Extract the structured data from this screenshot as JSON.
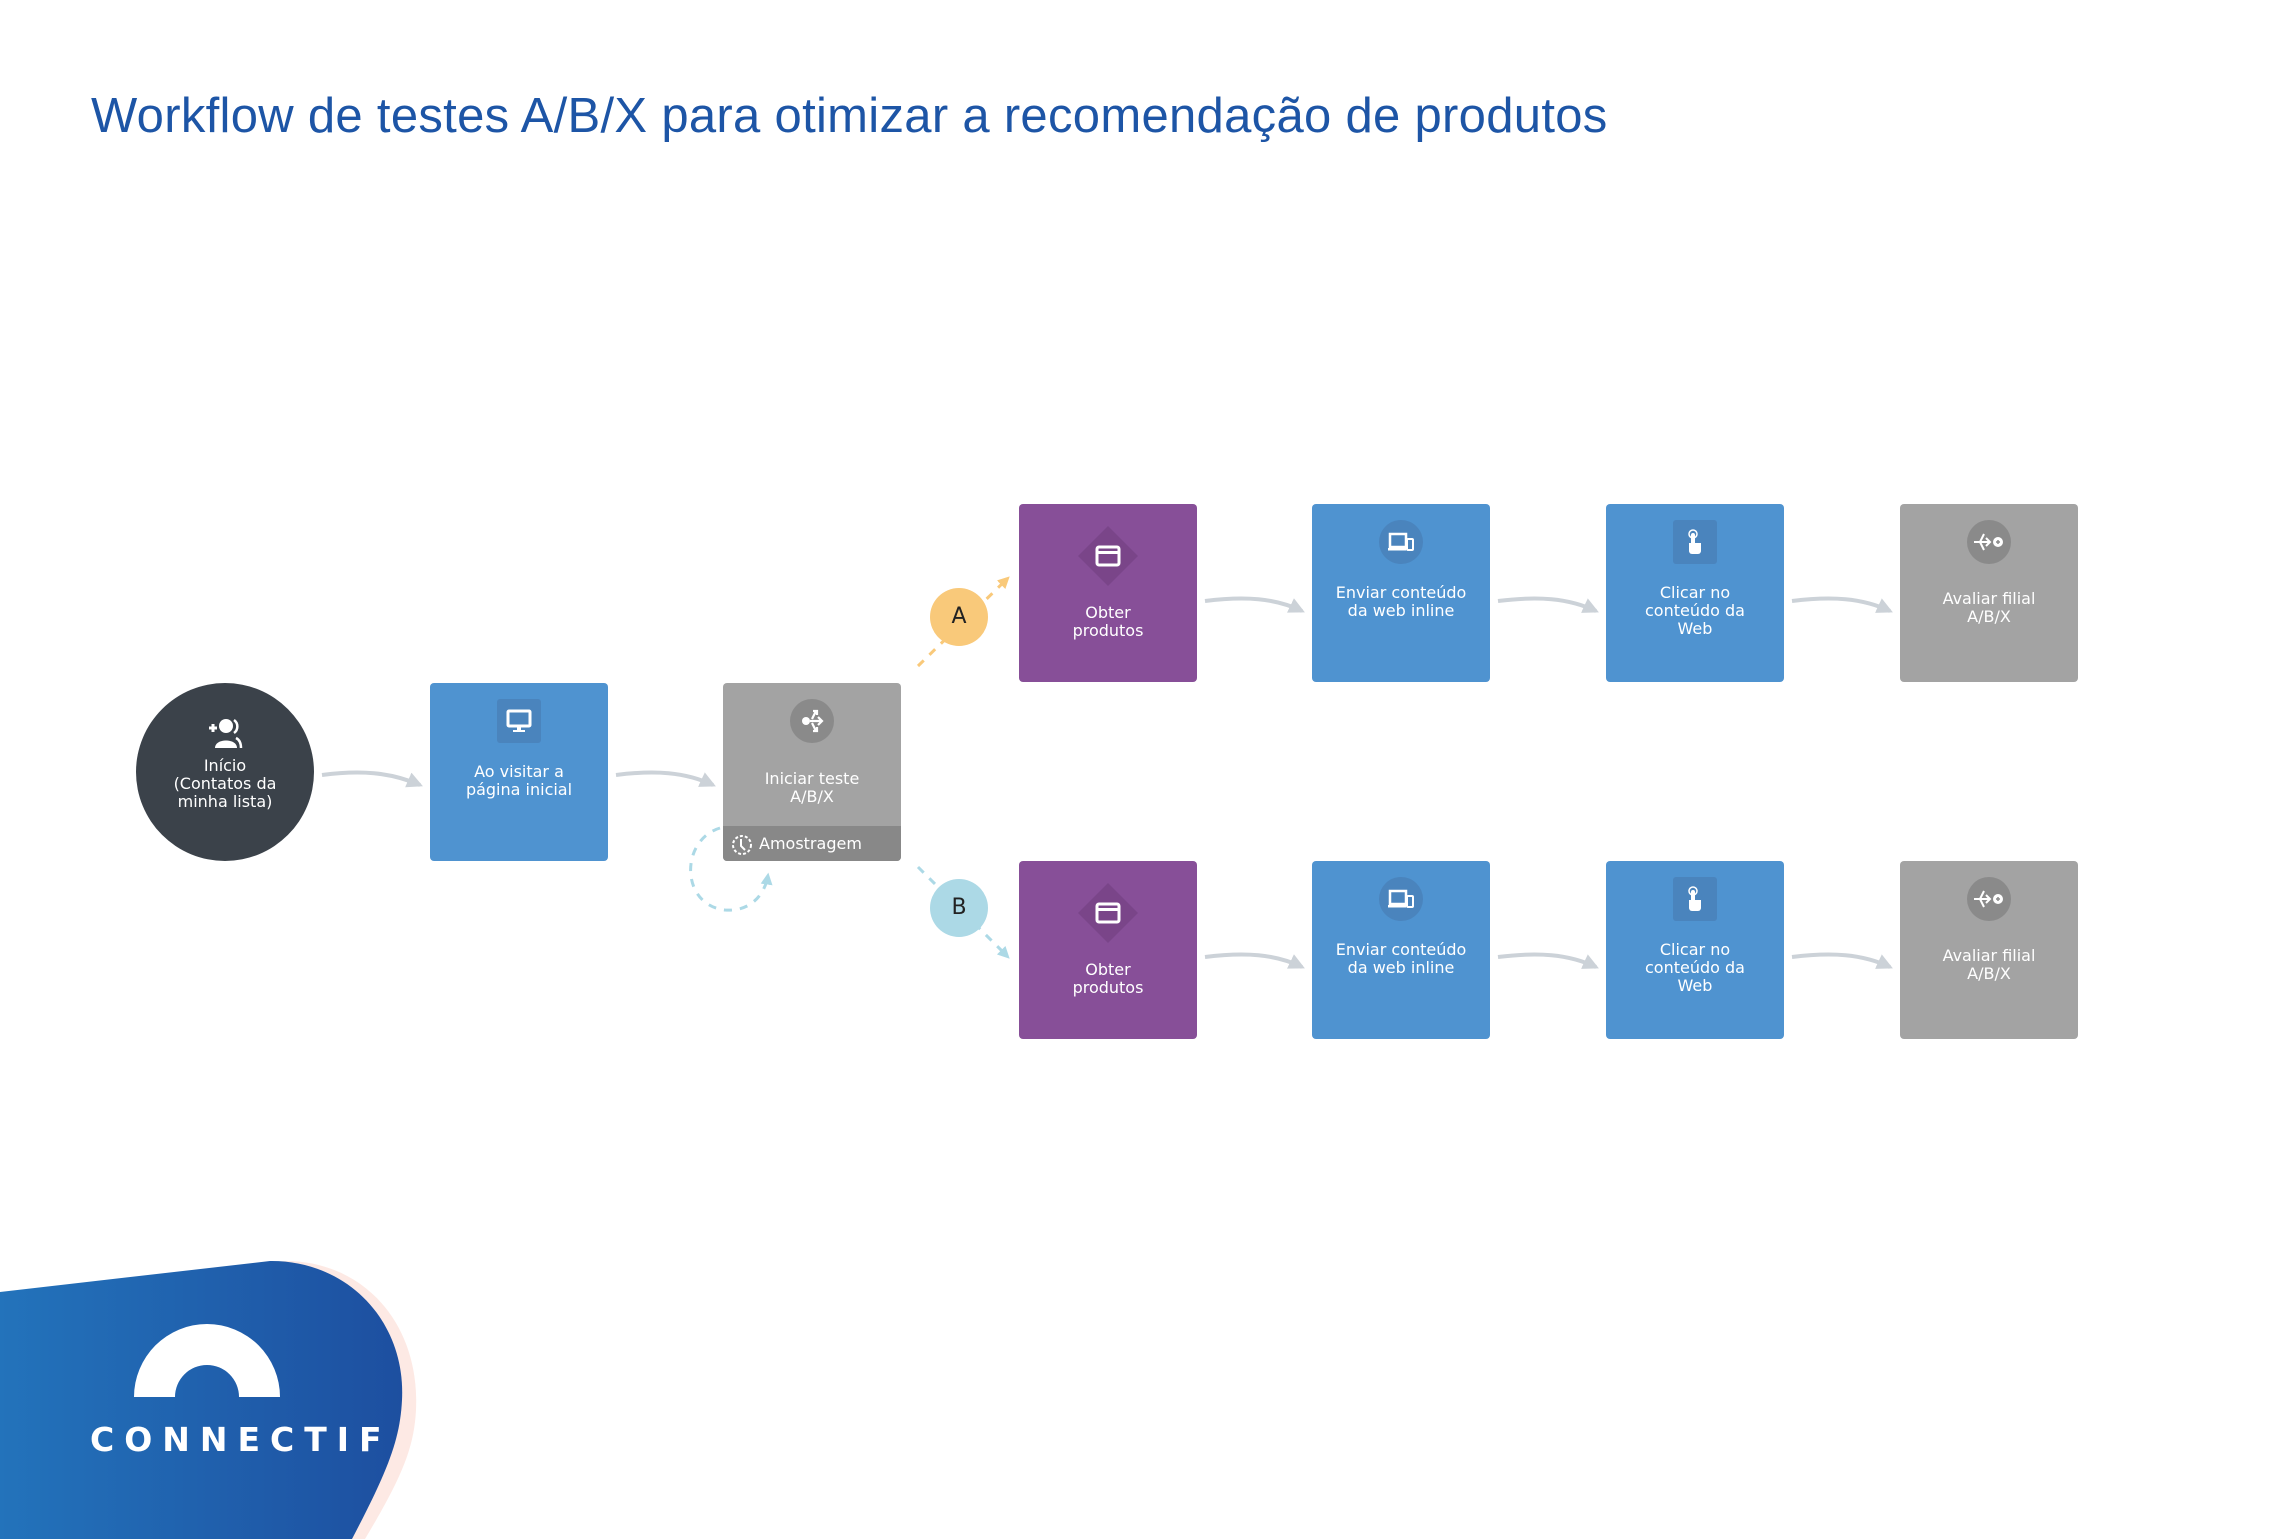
{
  "title": "Workflow de testes A/B/X para otimizar a recomendação de produtos",
  "colors": {
    "title": "#1d55a6",
    "start": "#3b424a",
    "action": "#4f93d0",
    "product": "#874f98",
    "abx": "#a3a3a3",
    "branch_a": "#f9c97a",
    "branch_b": "#acd9e6",
    "connector": "#ccd2d8",
    "logo_blue": "#1d55a6"
  },
  "start": {
    "label": "Início\n(Contatos da\nminha lista)",
    "icon": "add-user-icon"
  },
  "trigger": {
    "label": "Ao visitar a\npágina inicial",
    "icon": "monitor-icon"
  },
  "abx_start": {
    "label": "Iniciar teste\nA/B/X",
    "icon": "split-icon",
    "footer": "Amostragem",
    "footer_icon": "clock-icon"
  },
  "branches": [
    {
      "badge": "A",
      "nodes": [
        {
          "label": "Obter\nprodutos",
          "icon": "product-card-icon"
        },
        {
          "label": "Enviar conteúdo\nda web inline",
          "icon": "devices-icon"
        },
        {
          "label": "Clicar no\nconteúdo da\nWeb",
          "icon": "pointer-hand-icon"
        },
        {
          "label": "Avaliar filial\nA/B/X",
          "icon": "evaluate-split-icon"
        }
      ]
    },
    {
      "badge": "B",
      "nodes": [
        {
          "label": "Obter\nprodutos",
          "icon": "product-card-icon"
        },
        {
          "label": "Enviar conteúdo\nda web inline",
          "icon": "devices-icon"
        },
        {
          "label": "Clicar no\nconteúdo da\nWeb",
          "icon": "pointer-hand-icon"
        },
        {
          "label": "Avaliar filial\nA/B/X",
          "icon": "evaluate-split-icon"
        }
      ]
    }
  ],
  "logo": {
    "text": "CONNECTIF"
  }
}
